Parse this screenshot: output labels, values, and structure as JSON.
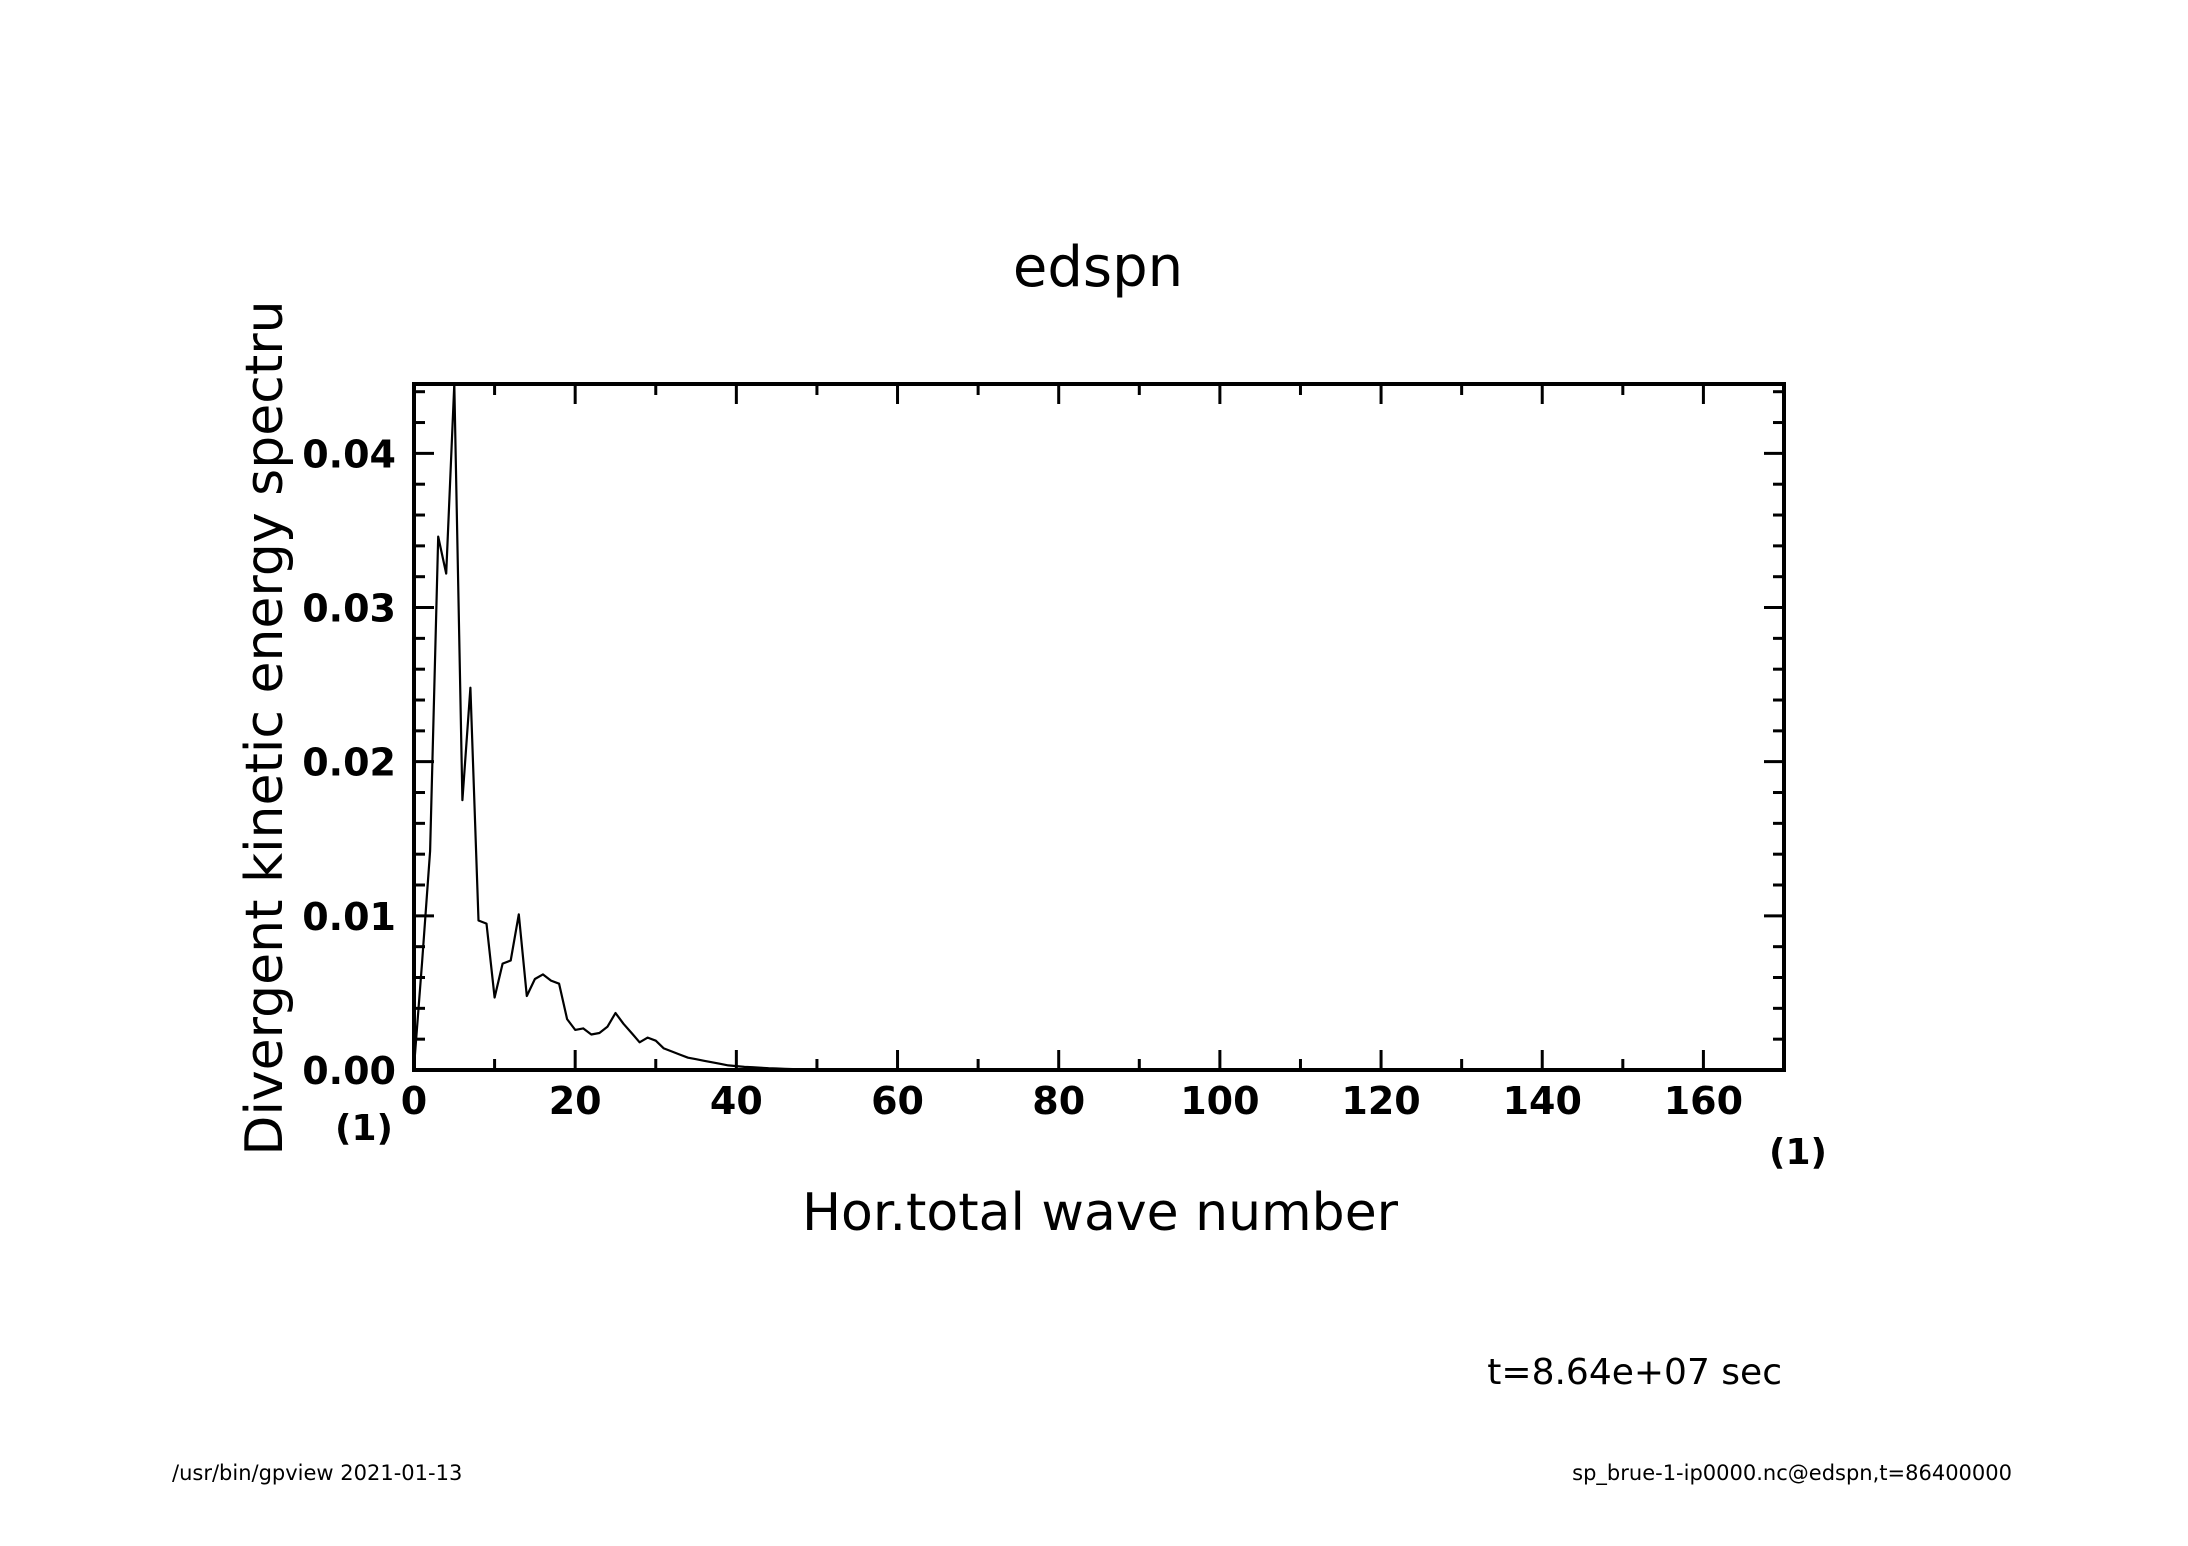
{
  "chart_data": {
    "type": "line",
    "title": "edspn",
    "xlabel": "Hor.total wave number",
    "ylabel": "Divergent kinetic energy spectru",
    "x_unit": "(1)",
    "y_unit": "(1)",
    "xlim": [
      0,
      170
    ],
    "ylim": [
      0,
      0.0445
    ],
    "x_ticks": [
      "0",
      "20",
      "40",
      "60",
      "80",
      "100",
      "120",
      "140",
      "160"
    ],
    "y_ticks": [
      "0.00",
      "0.01",
      "0.02",
      "0.03",
      "0.04"
    ],
    "annotation": "t=8.64e+07 sec",
    "series": [
      {
        "x": [
          0,
          1,
          2,
          3,
          4,
          5,
          6,
          7,
          8,
          9,
          10,
          11,
          12,
          13,
          14,
          15,
          16,
          17,
          18,
          19,
          20,
          21,
          22,
          23,
          24,
          25,
          26,
          27,
          28,
          29,
          30,
          31,
          32,
          33,
          34,
          35,
          36,
          37,
          38,
          39,
          40,
          41,
          42,
          43,
          44,
          45,
          46,
          47,
          48,
          49,
          50,
          52,
          54,
          56,
          58,
          60,
          65,
          70,
          80,
          90,
          100,
          110,
          120,
          130,
          140,
          150,
          160,
          170
        ],
        "values": [
          0.0002,
          0.007,
          0.0142,
          0.0346,
          0.0322,
          0.0445,
          0.0175,
          0.0248,
          0.0097,
          0.0095,
          0.0047,
          0.0069,
          0.0071,
          0.0101,
          0.0048,
          0.0059,
          0.0062,
          0.0058,
          0.0056,
          0.0033,
          0.0026,
          0.0027,
          0.0023,
          0.0024,
          0.0028,
          0.0037,
          0.003,
          0.0024,
          0.0018,
          0.0021,
          0.0019,
          0.0014,
          0.0012,
          0.001,
          0.0008,
          0.0007,
          0.0006,
          0.0005,
          0.0004,
          0.0003,
          0.00025,
          0.0002,
          0.00018,
          0.00015,
          0.00012,
          0.0001,
          8e-05,
          6e-05,
          5e-05,
          4e-05,
          3e-05,
          2e-05,
          1e-05,
          1e-05,
          5e-06,
          3e-06,
          2e-06,
          1e-06,
          0,
          0,
          0,
          0,
          0,
          0,
          0,
          0,
          0,
          0
        ]
      }
    ]
  },
  "footer": {
    "left": "/usr/bin/gpview   2021-01-13",
    "right": "sp_brue-1-ip0000.nc@edspn,t=86400000"
  }
}
